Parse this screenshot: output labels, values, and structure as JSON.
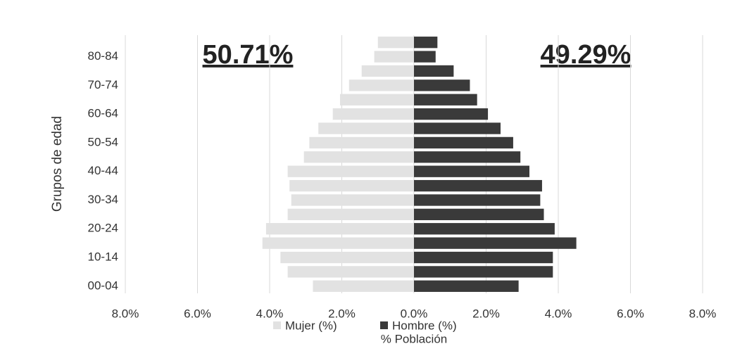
{
  "chart_data": {
    "type": "pyramid",
    "annotations": [
      "50.71%",
      "49.29%"
    ],
    "ylabel": "Grupos de edad",
    "xlabel": "% Población",
    "categories": [
      "00-04",
      null,
      "10-14",
      null,
      "20-24",
      null,
      "30-34",
      null,
      "40-44",
      null,
      "50-54",
      null,
      "60-64",
      null,
      "70-74",
      null,
      "80-84",
      null
    ],
    "series": [
      {
        "name": "Mujer (%)",
        "color": "#e2e2e2",
        "values": [
          -2.8,
          -3.5,
          -3.7,
          -4.2,
          -4.1,
          -3.5,
          -3.4,
          -3.45,
          -3.5,
          -3.05,
          -2.9,
          -2.65,
          -2.25,
          -2.05,
          -1.8,
          -1.45,
          -1.1,
          -1.0
        ]
      },
      {
        "name": "Hombre (%)",
        "color": "#3a3a3a",
        "values": [
          2.9,
          3.85,
          3.85,
          4.5,
          3.9,
          3.6,
          3.5,
          3.55,
          3.2,
          2.95,
          2.75,
          2.4,
          2.05,
          1.75,
          1.55,
          1.1,
          0.6,
          0.65
        ]
      }
    ],
    "xlim": [
      -8,
      8
    ],
    "xticks": [
      {
        "value": -8,
        "label": "8.0%"
      },
      {
        "value": -6,
        "label": "6.0%"
      },
      {
        "value": -4,
        "label": "4.0%"
      },
      {
        "value": -2,
        "label": "2.0%"
      },
      {
        "value": 0,
        "label": "0.0%"
      },
      {
        "value": 2,
        "label": "2.0%"
      },
      {
        "value": 4,
        "label": "4.0%"
      },
      {
        "value": 6,
        "label": "6.0%"
      },
      {
        "value": 8,
        "label": "8.0%"
      }
    ],
    "grid": true
  }
}
